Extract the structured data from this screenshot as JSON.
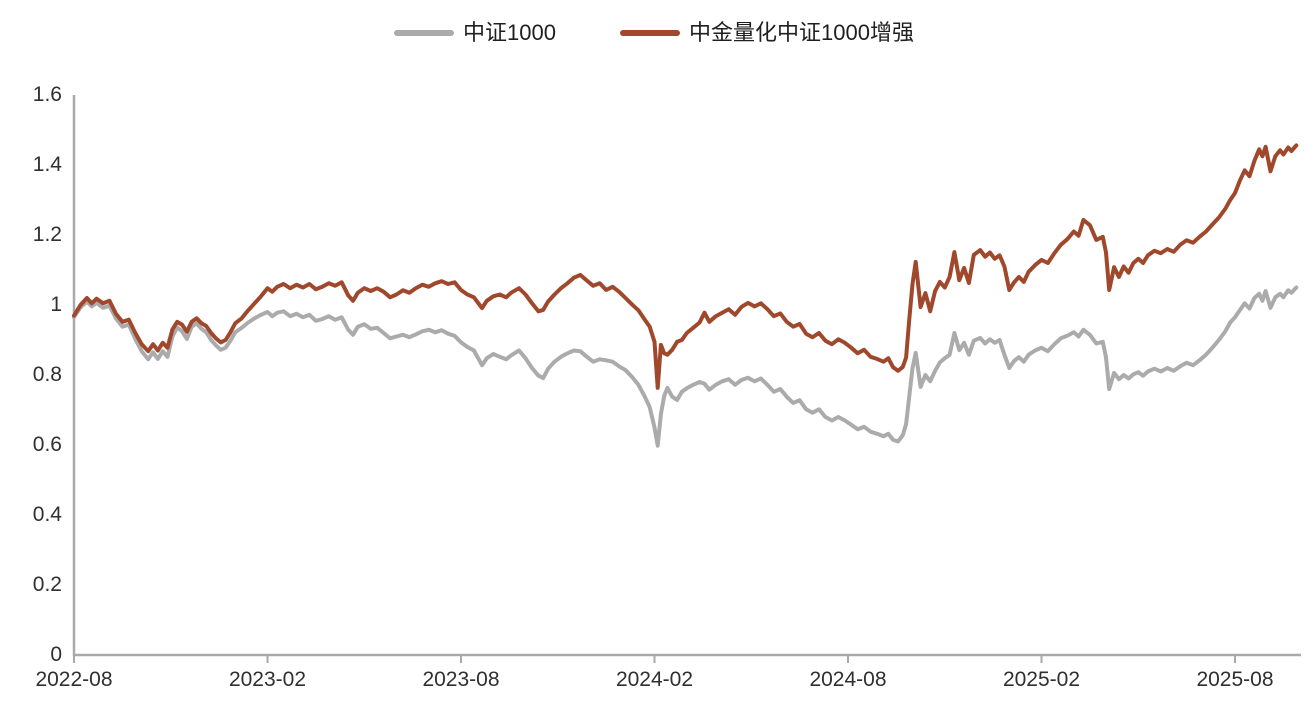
{
  "legend": {
    "items": [
      {
        "label": "中证1000",
        "color": "#ABABAB"
      },
      {
        "label": "中金量化中证1000增强",
        "color": "#A0482C"
      }
    ]
  },
  "chart_data": {
    "type": "line",
    "title": "",
    "xlabel": "",
    "ylabel": "",
    "grid": false,
    "legend_position": "top-center",
    "ylim": [
      0,
      1.6
    ],
    "y_tick_labels": [
      "0",
      "0.2",
      "0.4",
      "0.6",
      "0.8",
      "1",
      "1.2",
      "1.4",
      "1.6"
    ],
    "x_tick_labels": [
      "2022-08",
      "2023-02",
      "2023-08",
      "2024-02",
      "2024-08",
      "2025-02",
      "2025-08"
    ],
    "x_tick_interval_months": 6,
    "x_unit": "months since 2022-08",
    "x_range_months": [
      0,
      37.9
    ],
    "columns": [
      "t_months",
      "中证1000",
      "中金量化中证1000增强"
    ],
    "series": [
      {
        "name": "中证1000",
        "color": "#ABABAB",
        "column": 1
      },
      {
        "name": "中金量化中证1000增强",
        "color": "#A0482C",
        "column": 2
      }
    ],
    "rows": [
      [
        0.0,
        0.965,
        0.97
      ],
      [
        0.2,
        0.993,
        1.0
      ],
      [
        0.4,
        1.01,
        1.02
      ],
      [
        0.55,
        0.996,
        1.005
      ],
      [
        0.7,
        1.006,
        1.018
      ],
      [
        0.9,
        0.992,
        1.005
      ],
      [
        1.1,
        0.998,
        1.012
      ],
      [
        1.3,
        0.962,
        0.975
      ],
      [
        1.5,
        0.938,
        0.952
      ],
      [
        1.7,
        0.944,
        0.958
      ],
      [
        1.9,
        0.903,
        0.92
      ],
      [
        2.1,
        0.868,
        0.888
      ],
      [
        2.3,
        0.845,
        0.868
      ],
      [
        2.45,
        0.865,
        0.888
      ],
      [
        2.6,
        0.846,
        0.87
      ],
      [
        2.75,
        0.868,
        0.892
      ],
      [
        2.9,
        0.852,
        0.878
      ],
      [
        3.05,
        0.91,
        0.93
      ],
      [
        3.2,
        0.936,
        0.952
      ],
      [
        3.35,
        0.925,
        0.944
      ],
      [
        3.5,
        0.903,
        0.924
      ],
      [
        3.65,
        0.938,
        0.952
      ],
      [
        3.8,
        0.948,
        0.962
      ],
      [
        3.95,
        0.932,
        0.948
      ],
      [
        4.1,
        0.922,
        0.94
      ],
      [
        4.25,
        0.9,
        0.92
      ],
      [
        4.4,
        0.885,
        0.905
      ],
      [
        4.55,
        0.872,
        0.893
      ],
      [
        4.7,
        0.878,
        0.9
      ],
      [
        4.85,
        0.898,
        0.922
      ],
      [
        5.0,
        0.922,
        0.948
      ],
      [
        5.2,
        0.935,
        0.962
      ],
      [
        5.4,
        0.95,
        0.985
      ],
      [
        5.6,
        0.962,
        1.005
      ],
      [
        5.8,
        0.972,
        1.025
      ],
      [
        6.0,
        0.98,
        1.048
      ],
      [
        6.15,
        0.968,
        1.038
      ],
      [
        6.3,
        0.978,
        1.052
      ],
      [
        6.5,
        0.982,
        1.06
      ],
      [
        6.7,
        0.968,
        1.048
      ],
      [
        6.9,
        0.975,
        1.058
      ],
      [
        7.1,
        0.965,
        1.05
      ],
      [
        7.3,
        0.972,
        1.06
      ],
      [
        7.5,
        0.955,
        1.045
      ],
      [
        7.7,
        0.96,
        1.052
      ],
      [
        7.9,
        0.968,
        1.062
      ],
      [
        8.1,
        0.958,
        1.055
      ],
      [
        8.3,
        0.965,
        1.065
      ],
      [
        8.5,
        0.93,
        1.028
      ],
      [
        8.65,
        0.915,
        1.012
      ],
      [
        8.8,
        0.938,
        1.035
      ],
      [
        9.0,
        0.945,
        1.048
      ],
      [
        9.2,
        0.932,
        1.04
      ],
      [
        9.4,
        0.935,
        1.048
      ],
      [
        9.6,
        0.92,
        1.038
      ],
      [
        9.8,
        0.905,
        1.022
      ],
      [
        10.0,
        0.91,
        1.03
      ],
      [
        10.2,
        0.915,
        1.042
      ],
      [
        10.4,
        0.908,
        1.035
      ],
      [
        10.6,
        0.916,
        1.048
      ],
      [
        10.8,
        0.925,
        1.058
      ],
      [
        11.0,
        0.929,
        1.052
      ],
      [
        11.2,
        0.922,
        1.062
      ],
      [
        11.4,
        0.928,
        1.068
      ],
      [
        11.6,
        0.918,
        1.06
      ],
      [
        11.8,
        0.912,
        1.065
      ],
      [
        12.0,
        0.893,
        1.043
      ],
      [
        12.2,
        0.88,
        1.03
      ],
      [
        12.4,
        0.87,
        1.022
      ],
      [
        12.65,
        0.828,
        0.991
      ],
      [
        12.8,
        0.848,
        1.012
      ],
      [
        13.0,
        0.86,
        1.025
      ],
      [
        13.2,
        0.852,
        1.03
      ],
      [
        13.4,
        0.845,
        1.022
      ],
      [
        13.55,
        0.856,
        1.035
      ],
      [
        13.8,
        0.87,
        1.048
      ],
      [
        14.0,
        0.848,
        1.03
      ],
      [
        14.2,
        0.82,
        1.005
      ],
      [
        14.4,
        0.798,
        0.982
      ],
      [
        14.55,
        0.791,
        0.986
      ],
      [
        14.7,
        0.818,
        1.01
      ],
      [
        14.9,
        0.838,
        1.03
      ],
      [
        15.1,
        0.852,
        1.048
      ],
      [
        15.3,
        0.862,
        1.062
      ],
      [
        15.5,
        0.87,
        1.078
      ],
      [
        15.7,
        0.868,
        1.086
      ],
      [
        15.9,
        0.852,
        1.07
      ],
      [
        16.1,
        0.838,
        1.055
      ],
      [
        16.3,
        0.845,
        1.062
      ],
      [
        16.5,
        0.842,
        1.043
      ],
      [
        16.7,
        0.838,
        1.052
      ],
      [
        16.9,
        0.825,
        1.038
      ],
      [
        17.1,
        0.814,
        1.02
      ],
      [
        17.3,
        0.795,
        1.002
      ],
      [
        17.5,
        0.772,
        0.985
      ],
      [
        17.7,
        0.738,
        0.958
      ],
      [
        17.85,
        0.708,
        0.938
      ],
      [
        18.0,
        0.65,
        0.895
      ],
      [
        18.1,
        0.598,
        0.763
      ],
      [
        18.2,
        0.688,
        0.886
      ],
      [
        18.3,
        0.74,
        0.862
      ],
      [
        18.4,
        0.763,
        0.858
      ],
      [
        18.55,
        0.738,
        0.872
      ],
      [
        18.7,
        0.729,
        0.895
      ],
      [
        18.85,
        0.752,
        0.9
      ],
      [
        19.0,
        0.762,
        0.92
      ],
      [
        19.2,
        0.772,
        0.935
      ],
      [
        19.4,
        0.78,
        0.95
      ],
      [
        19.55,
        0.775,
        0.978
      ],
      [
        19.7,
        0.758,
        0.952
      ],
      [
        19.9,
        0.772,
        0.968
      ],
      [
        20.1,
        0.782,
        0.978
      ],
      [
        20.3,
        0.788,
        0.988
      ],
      [
        20.5,
        0.772,
        0.972
      ],
      [
        20.7,
        0.786,
        0.995
      ],
      [
        20.9,
        0.792,
        1.006
      ],
      [
        21.1,
        0.782,
        0.996
      ],
      [
        21.3,
        0.79,
        1.005
      ],
      [
        21.5,
        0.772,
        0.988
      ],
      [
        21.7,
        0.752,
        0.968
      ],
      [
        21.9,
        0.76,
        0.976
      ],
      [
        22.1,
        0.738,
        0.952
      ],
      [
        22.3,
        0.72,
        0.938
      ],
      [
        22.5,
        0.728,
        0.946
      ],
      [
        22.7,
        0.702,
        0.918
      ],
      [
        22.9,
        0.692,
        0.908
      ],
      [
        23.1,
        0.702,
        0.92
      ],
      [
        23.3,
        0.68,
        0.898
      ],
      [
        23.5,
        0.67,
        0.888
      ],
      [
        23.7,
        0.68,
        0.902
      ],
      [
        23.9,
        0.67,
        0.892
      ],
      [
        24.1,
        0.658,
        0.878
      ],
      [
        24.3,
        0.645,
        0.862
      ],
      [
        24.5,
        0.652,
        0.872
      ],
      [
        24.7,
        0.638,
        0.852
      ],
      [
        24.9,
        0.632,
        0.846
      ],
      [
        25.1,
        0.625,
        0.838
      ],
      [
        25.25,
        0.632,
        0.848
      ],
      [
        25.4,
        0.615,
        0.822
      ],
      [
        25.55,
        0.61,
        0.812
      ],
      [
        25.7,
        0.628,
        0.823
      ],
      [
        25.8,
        0.66,
        0.85
      ],
      [
        25.9,
        0.74,
        0.96
      ],
      [
        26.0,
        0.82,
        1.06
      ],
      [
        26.1,
        0.863,
        1.123
      ],
      [
        26.25,
        0.766,
        0.994
      ],
      [
        26.4,
        0.8,
        1.034
      ],
      [
        26.55,
        0.782,
        0.982
      ],
      [
        26.7,
        0.812,
        1.04
      ],
      [
        26.85,
        0.836,
        1.066
      ],
      [
        27.0,
        0.848,
        1.05
      ],
      [
        27.15,
        0.858,
        1.08
      ],
      [
        27.3,
        0.92,
        1.151
      ],
      [
        27.45,
        0.871,
        1.071
      ],
      [
        27.6,
        0.892,
        1.106
      ],
      [
        27.75,
        0.858,
        1.063
      ],
      [
        27.9,
        0.898,
        1.143
      ],
      [
        28.1,
        0.906,
        1.157
      ],
      [
        28.25,
        0.89,
        1.138
      ],
      [
        28.4,
        0.902,
        1.15
      ],
      [
        28.55,
        0.892,
        1.132
      ],
      [
        28.7,
        0.9,
        1.142
      ],
      [
        28.85,
        0.858,
        1.11
      ],
      [
        29.0,
        0.82,
        1.043
      ],
      [
        29.15,
        0.84,
        1.065
      ],
      [
        29.3,
        0.851,
        1.08
      ],
      [
        29.45,
        0.838,
        1.066
      ],
      [
        29.6,
        0.858,
        1.095
      ],
      [
        29.8,
        0.87,
        1.114
      ],
      [
        30.0,
        0.878,
        1.129
      ],
      [
        30.2,
        0.868,
        1.12
      ],
      [
        30.4,
        0.888,
        1.148
      ],
      [
        30.6,
        0.905,
        1.172
      ],
      [
        30.8,
        0.912,
        1.188
      ],
      [
        31.0,
        0.922,
        1.21
      ],
      [
        31.15,
        0.91,
        1.198
      ],
      [
        31.3,
        0.929,
        1.243
      ],
      [
        31.5,
        0.915,
        1.228
      ],
      [
        31.7,
        0.89,
        1.186
      ],
      [
        31.9,
        0.895,
        1.195
      ],
      [
        32.0,
        0.85,
        1.15
      ],
      [
        32.1,
        0.76,
        1.043
      ],
      [
        32.25,
        0.806,
        1.108
      ],
      [
        32.4,
        0.788,
        1.08
      ],
      [
        32.55,
        0.8,
        1.11
      ],
      [
        32.7,
        0.79,
        1.092
      ],
      [
        32.85,
        0.802,
        1.12
      ],
      [
        33.0,
        0.808,
        1.132
      ],
      [
        33.15,
        0.798,
        1.12
      ],
      [
        33.3,
        0.81,
        1.142
      ],
      [
        33.5,
        0.818,
        1.155
      ],
      [
        33.7,
        0.81,
        1.148
      ],
      [
        33.9,
        0.82,
        1.16
      ],
      [
        34.1,
        0.812,
        1.152
      ],
      [
        34.3,
        0.825,
        1.172
      ],
      [
        34.5,
        0.835,
        1.185
      ],
      [
        34.7,
        0.828,
        1.178
      ],
      [
        34.9,
        0.842,
        1.195
      ],
      [
        35.1,
        0.858,
        1.21
      ],
      [
        35.3,
        0.878,
        1.23
      ],
      [
        35.5,
        0.9,
        1.25
      ],
      [
        35.7,
        0.925,
        1.275
      ],
      [
        35.85,
        0.95,
        1.3
      ],
      [
        36.0,
        0.965,
        1.32
      ],
      [
        36.15,
        0.985,
        1.355
      ],
      [
        36.3,
        1.005,
        1.385
      ],
      [
        36.45,
        0.99,
        1.368
      ],
      [
        36.6,
        1.02,
        1.412
      ],
      [
        36.75,
        1.032,
        1.445
      ],
      [
        36.85,
        1.012,
        1.425
      ],
      [
        36.95,
        1.04,
        1.452
      ],
      [
        37.1,
        0.992,
        1.382
      ],
      [
        37.25,
        1.022,
        1.425
      ],
      [
        37.4,
        1.032,
        1.442
      ],
      [
        37.5,
        1.022,
        1.43
      ],
      [
        37.65,
        1.042,
        1.45
      ],
      [
        37.75,
        1.035,
        1.44
      ],
      [
        37.9,
        1.05,
        1.456
      ]
    ],
    "axis_color": "#A9A9A9",
    "line_width": 4
  }
}
